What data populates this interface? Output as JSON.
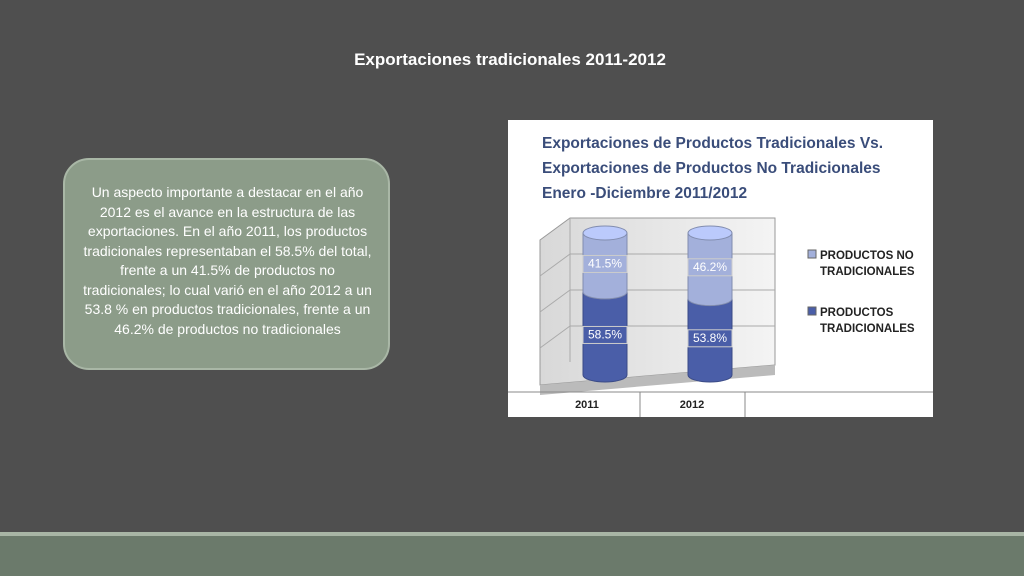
{
  "slide": {
    "title": "Exportaciones tradicionales 2011-2012",
    "text": "Un aspecto importante a destacar en el año 2012 es el avance en la estructura de las exportaciones. En el año 2011, los productos tradicionales representaban el 58.5% del total, frente a un 41.5% de productos no tradicionales; lo cual varió en el año 2012 a un 53.8 % en productos tradicionales, frente a un 46.2% de productos no tradicionales"
  },
  "chart_data": {
    "type": "stacked_cylinder",
    "title": "Exportaciones  de Productos Tradicionales Vs. Exportaciones de Productos No Tradicionales Enero -Diciembre 2011/2012",
    "categories": [
      "2011",
      "2012"
    ],
    "series": [
      {
        "name": "PRODUCTOS TRADICIONALES",
        "color": "#4a5ea8",
        "values": [
          58.5,
          53.8
        ],
        "value_labels": [
          "58.5%",
          "53.8%"
        ]
      },
      {
        "name": "PRODUCTOS NO TRADICIONALES",
        "color": "#a3b0db",
        "values": [
          41.5,
          46.2
        ],
        "value_labels": [
          "41.5%",
          "46.2%"
        ]
      }
    ],
    "ylim": [
      0,
      100
    ],
    "legend": "right"
  }
}
